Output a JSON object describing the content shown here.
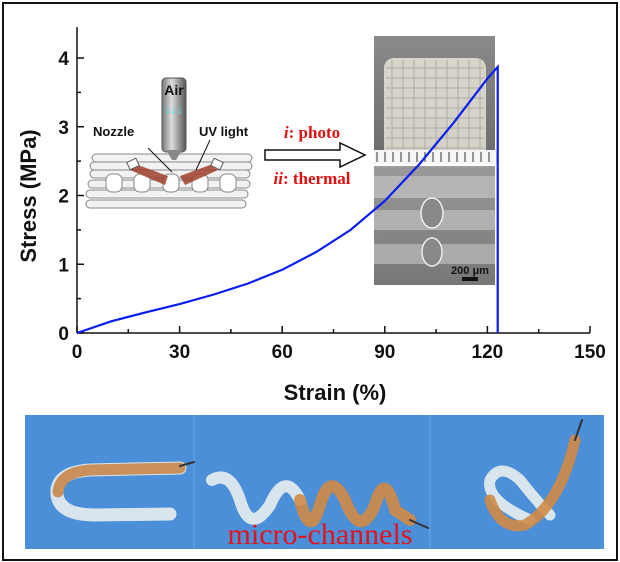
{
  "chart_data": {
    "type": "line",
    "xlabel": "Strain (%)",
    "ylabel": "Stress (MPa)",
    "xlim": [
      0,
      150
    ],
    "ylim": [
      0,
      4.45
    ],
    "xticks": [
      0,
      30,
      60,
      90,
      120,
      150
    ],
    "yticks": [
      0,
      1,
      2,
      3,
      4
    ],
    "grid": false,
    "series": [
      {
        "color": "#0a1ef0",
        "x": [
          0,
          10,
          20,
          30,
          40,
          50,
          60,
          70,
          80,
          90,
          100,
          110,
          120,
          123,
          123
        ],
        "y": [
          0,
          0.17,
          0.3,
          0.42,
          0.56,
          0.72,
          0.92,
          1.18,
          1.5,
          1.92,
          2.45,
          3.05,
          3.7,
          3.87,
          0
        ]
      }
    ]
  },
  "inset": {
    "schematic": {
      "air": "Air",
      "nozzle": "Nozzle",
      "uv_light": "UV light"
    },
    "steps": [
      {
        "num": "i",
        "label": ": photo"
      },
      {
        "num": "ii",
        "label": ": thermal"
      }
    ],
    "scale_bar": "200 μm",
    "step_color": "#e01010"
  },
  "photos": {
    "caption": "micro-channels",
    "caption_color": "#e8101a",
    "background_color": "#4a8fd8"
  }
}
